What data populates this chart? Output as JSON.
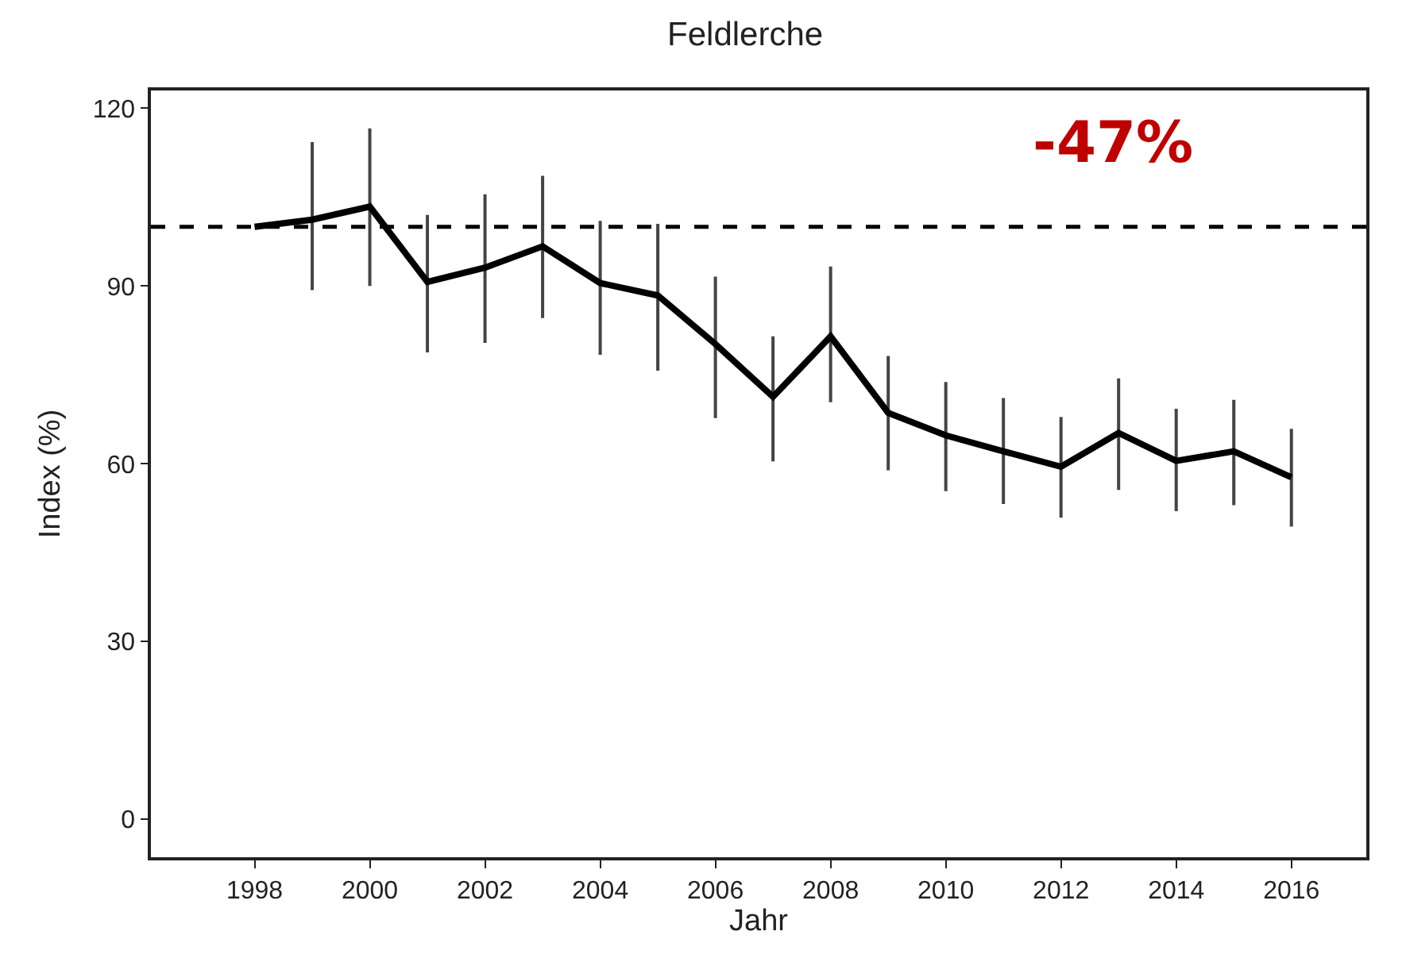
{
  "chart_data": {
    "type": "line",
    "title": "Feldlerche",
    "xlabel": "Jahr",
    "ylabel": "Index (%)",
    "x": [
      1998,
      1999,
      2000,
      2001,
      2002,
      2003,
      2004,
      2005,
      2006,
      2007,
      2008,
      2009,
      2010,
      2011,
      2012,
      2013,
      2014,
      2015,
      2016
    ],
    "series": [
      {
        "color": "#000000",
        "values": [
          100,
          101.2,
          103.4,
          90.7,
          93.1,
          96.7,
          90.5,
          88.4,
          80.2,
          71.3,
          81.5,
          68.6,
          64.8,
          62.1,
          59.5,
          65.2,
          60.5,
          62.1,
          57.7
        ],
        "errors": [
          null,
          [
            89.3,
            114.3
          ],
          [
            90,
            116.6
          ],
          [
            78.8,
            102
          ],
          [
            80.4,
            105.5
          ],
          [
            84.6,
            108.6
          ],
          [
            78.4,
            101
          ],
          [
            75.7,
            100.5
          ],
          [
            67.7,
            91.6
          ],
          [
            60.4,
            81.5
          ],
          [
            70.4,
            93.3
          ],
          [
            58.9,
            78.2
          ],
          [
            55.4,
            73.8
          ],
          [
            53.2,
            71.1
          ],
          [
            50.9,
            67.9
          ],
          [
            55.6,
            74.4
          ],
          [
            52,
            69.3
          ],
          [
            53,
            70.8
          ],
          [
            49.4,
            65.9
          ]
        ]
      }
    ],
    "xlim": [
      1996.2,
      2017.3
    ],
    "xticks": [
      1998,
      2000,
      2002,
      2004,
      2006,
      2008,
      2010,
      2012,
      2014,
      2016
    ],
    "ylim": [
      -6.4,
      123
    ],
    "yticks": [
      0,
      30,
      60,
      90,
      120
    ],
    "ref_lines": [
      {
        "axis": "y",
        "value": 100,
        "line_style": "dashed",
        "color": "#000000"
      }
    ],
    "annotations": [
      "-47%"
    ],
    "marker": "none",
    "line_style": "solid"
  }
}
